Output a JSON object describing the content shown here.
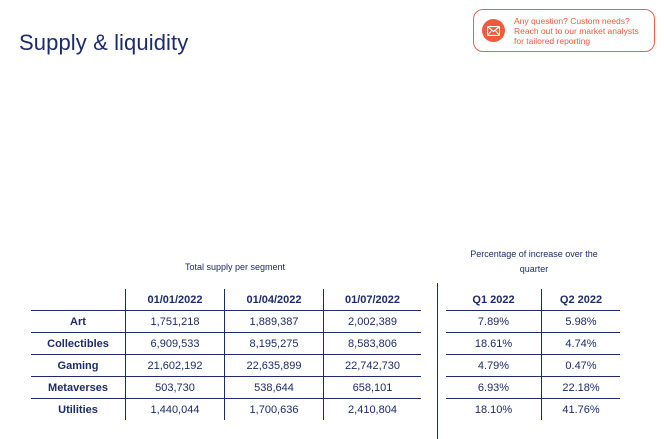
{
  "title": "Supply & liquidity",
  "cta": {
    "icon": "envelope-icon",
    "line1": "Any question? Custom needs?",
    "line2": "Reach out to our market analysts",
    "line3": "for tailored reporting",
    "accent": "#ee5a3e"
  },
  "supply": {
    "caption": "Total supply per segment",
    "headers": [
      "",
      "01/01/2022",
      "01/04/2022",
      "01/07/2022"
    ],
    "rows": [
      {
        "segment": "Art",
        "values": [
          "1,751,218",
          "1,889,387",
          "2,002,389"
        ]
      },
      {
        "segment": "Collectibles",
        "values": [
          "6,909,533",
          "8,195,275",
          "8,583,806"
        ]
      },
      {
        "segment": "Gaming",
        "values": [
          "21,602,192",
          "22,635,899",
          "22,742,730"
        ]
      },
      {
        "segment": "Metaverses",
        "values": [
          "503,730",
          "538,644",
          "658,101"
        ]
      },
      {
        "segment": "Utilities",
        "values": [
          "1,440,044",
          "1,700,636",
          "2,410,804"
        ]
      }
    ]
  },
  "increase": {
    "caption_line1": "Percentage of increase over the",
    "caption_line2": "quarter",
    "headers": [
      "Q1 2022",
      "Q2 2022"
    ],
    "rows": [
      [
        "7.89%",
        "5.98%"
      ],
      [
        "18.61%",
        "4.74%"
      ],
      [
        "4.79%",
        "0.47%"
      ],
      [
        "6.93%",
        "22.18%"
      ],
      [
        "18.10%",
        "41.76%"
      ]
    ]
  },
  "colors": {
    "text": "#1c2b6b",
    "accent": "#ee5a3e"
  }
}
